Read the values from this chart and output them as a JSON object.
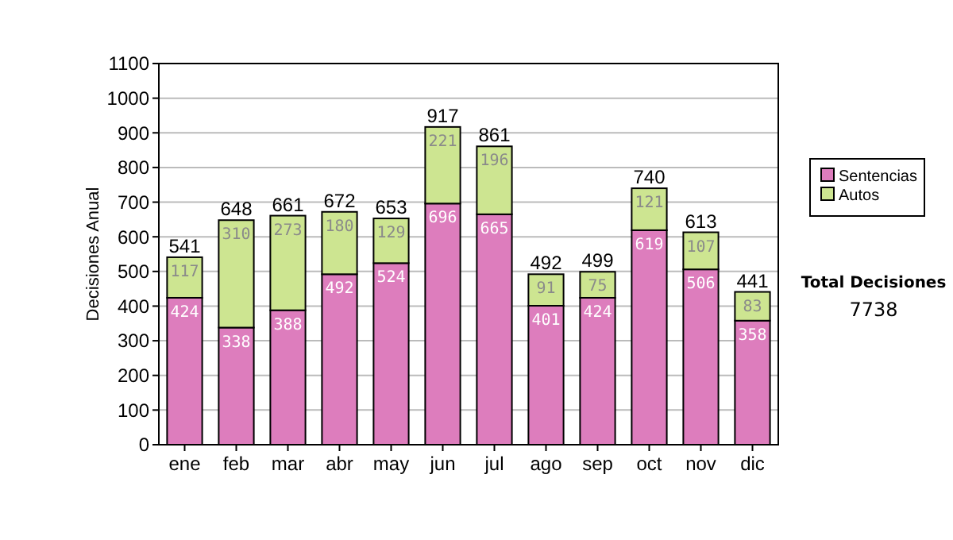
{
  "chart_data": {
    "type": "bar",
    "stacked": true,
    "ylabel": "Decisiones Anual",
    "categories": [
      "ene",
      "feb",
      "mar",
      "abr",
      "may",
      "jun",
      "jul",
      "ago",
      "sep",
      "oct",
      "nov",
      "dic"
    ],
    "series": [
      {
        "name": "Sentencias",
        "color": "#dd7dbd",
        "values": [
          424,
          338,
          388,
          492,
          524,
          696,
          665,
          401,
          424,
          619,
          506,
          358
        ]
      },
      {
        "name": "Autos",
        "color": "#cde591",
        "values": [
          117,
          310,
          273,
          180,
          129,
          221,
          196,
          91,
          75,
          121,
          107,
          83
        ]
      }
    ],
    "totals": [
      "541",
      "648",
      "661",
      "672",
      "653",
      "917",
      "861",
      "492",
      "499",
      "740",
      "613",
      "441"
    ],
    "ylim": [
      0,
      1100
    ],
    "yticks": [
      0,
      100,
      200,
      300,
      400,
      500,
      600,
      700,
      800,
      900,
      1000,
      1100
    ],
    "grid": "y",
    "legend": "right",
    "data_labels": true,
    "annotations": [
      "Total Decisiones",
      "7738"
    ]
  }
}
